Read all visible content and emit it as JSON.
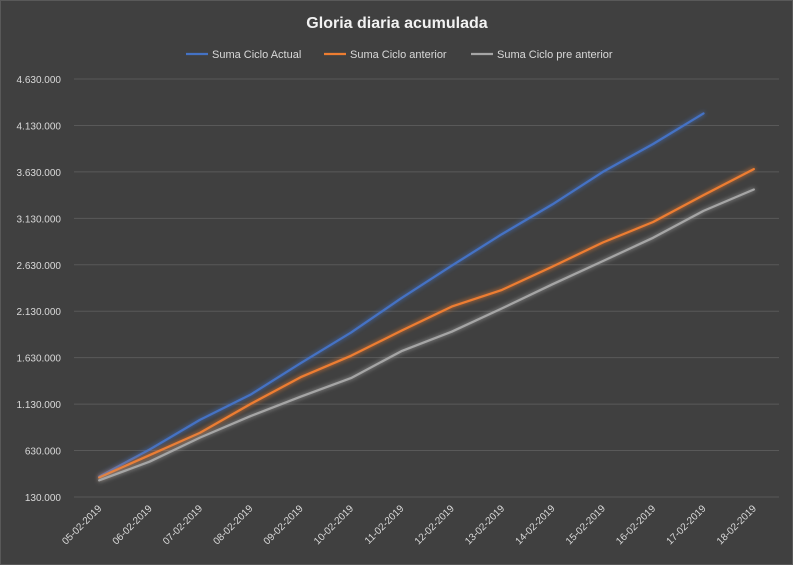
{
  "chart_data": {
    "type": "line",
    "title": "Gloria diaria acumulada",
    "xlabel": "",
    "ylabel": "",
    "categories": [
      "05-02-2019",
      "06-02-2019",
      "07-02-2019",
      "08-02-2019",
      "09-02-2019",
      "10-02-2019",
      "11-02-2019",
      "12-02-2019",
      "13-02-2019",
      "14-02-2019",
      "15-02-2019",
      "16-02-2019",
      "17-02-2019",
      "18-02-2019"
    ],
    "y_ticks": [
      "130.000",
      "630.000",
      "1.130.000",
      "1.630.000",
      "2.130.000",
      "2.630.000",
      "3.130.000",
      "3.630.000",
      "4.130.000",
      "4.630.000"
    ],
    "ylim": [
      130000,
      4630000
    ],
    "grid": true,
    "legend_position": "top",
    "series": [
      {
        "name": "Suma Ciclo Actual",
        "color": "#4472c4",
        "values": [
          350000,
          640000,
          960000,
          1230000,
          1570000,
          1900000,
          2270000,
          2620000,
          2960000,
          3280000,
          3630000,
          3930000,
          4260000,
          null
        ]
      },
      {
        "name": "Suma Ciclo anterior",
        "color": "#ed7d31",
        "values": [
          340000,
          580000,
          820000,
          1130000,
          1420000,
          1650000,
          1920000,
          2180000,
          2360000,
          2610000,
          2870000,
          3090000,
          3380000,
          3660000
        ]
      },
      {
        "name": "Suma Ciclo pre anterior",
        "color": "#a5a5a5",
        "values": [
          310000,
          510000,
          770000,
          1000000,
          1210000,
          1410000,
          1700000,
          1910000,
          2160000,
          2420000,
          2670000,
          2920000,
          3210000,
          3440000
        ]
      }
    ]
  }
}
